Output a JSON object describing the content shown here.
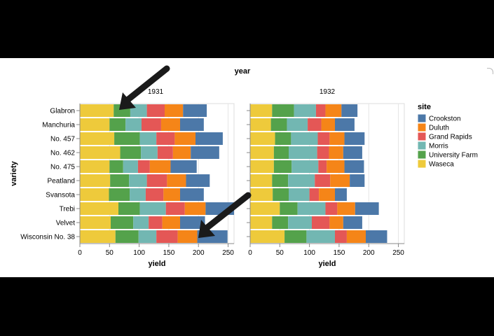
{
  "chart_data": {
    "type": "bar",
    "stacked": true,
    "orientation": "horizontal",
    "title": "year",
    "facet_labels": [
      "1931",
      "1932"
    ],
    "ylabel": "variety",
    "xlabel": "yield",
    "xlim": [
      0,
      260
    ],
    "xticks": [
      0,
      50,
      100,
      150,
      200,
      250
    ],
    "legend_title": "site",
    "legend_position": "right",
    "categories": [
      "Glabron",
      "Manchuria",
      "No. 457",
      "No. 462",
      "No. 475",
      "Peatland",
      "Svansota",
      "Trebi",
      "Velvet",
      "Wisconsin No. 38"
    ],
    "series": [
      {
        "name": "Waseca",
        "color": "#eeca3b",
        "values_1931": [
          57,
          50,
          58,
          68,
          50,
          51,
          49,
          65,
          52,
          60
        ],
        "values_1932": [
          37,
          35,
          42,
          40,
          40,
          37,
          38,
          50,
          37,
          58
        ]
      },
      {
        "name": "University Farm",
        "color": "#54a24b",
        "values_1931": [
          28,
          27,
          43,
          35,
          23,
          32,
          35,
          36,
          38,
          39
        ],
        "values_1932": [
          37,
          27,
          27,
          25,
          30,
          27,
          27,
          30,
          27,
          37
        ]
      },
      {
        "name": "Morris",
        "color": "#72b7b2",
        "values_1931": [
          28,
          27,
          28,
          28,
          25,
          30,
          27,
          44,
          26,
          30
        ],
        "values_1932": [
          37,
          35,
          45,
          48,
          45,
          45,
          35,
          47,
          40,
          48
        ]
      },
      {
        "name": "Grand Rapids",
        "color": "#e45756",
        "values_1931": [
          30,
          33,
          31,
          26,
          20,
          34,
          30,
          32,
          23,
          36
        ],
        "values_1932": [
          16,
          23,
          20,
          20,
          14,
          26,
          16,
          20,
          30,
          20
        ]
      },
      {
        "name": "Duluth",
        "color": "#f58518",
        "values_1931": [
          31,
          32,
          35,
          30,
          35,
          32,
          28,
          35,
          30,
          33
        ],
        "values_1932": [
          27,
          23,
          25,
          24,
          30,
          33,
          27,
          30,
          23,
          32
        ]
      },
      {
        "name": "Crookston",
        "color": "#4c78a8",
        "values_1931": [
          40,
          40,
          46,
          48,
          44,
          40,
          40,
          48,
          42,
          51
        ],
        "values_1932": [
          27,
          33,
          34,
          32,
          33,
          25,
          20,
          40,
          32,
          36
        ]
      }
    ]
  }
}
